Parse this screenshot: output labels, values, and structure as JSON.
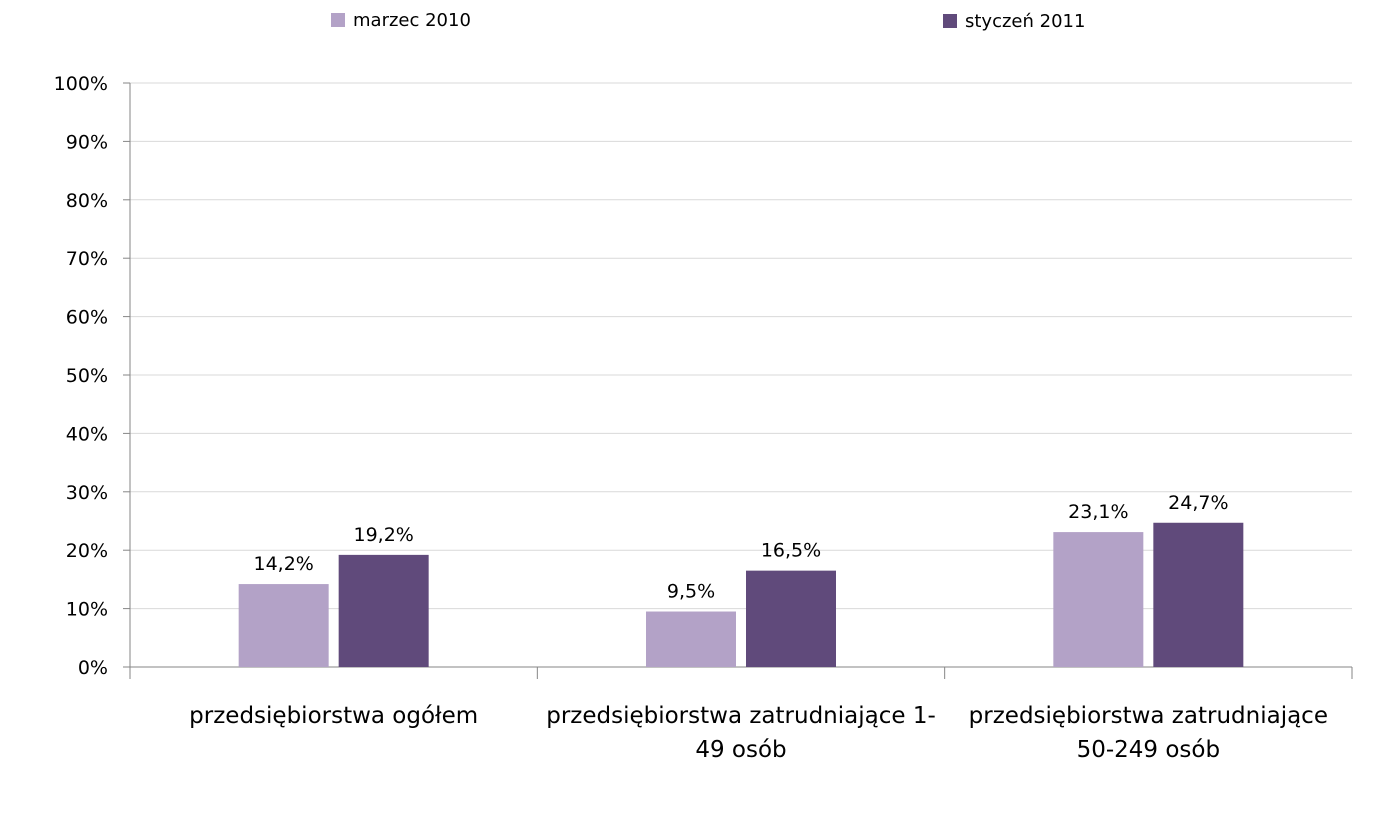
{
  "chart_data": {
    "type": "bar",
    "categories": [
      [
        "przedsiębiorstwa ogółem"
      ],
      [
        "przedsiębiorstwa zatrudniające 1-",
        "49 osób"
      ],
      [
        "przedsiębiorstwa zatrudniające",
        "50-249 osób"
      ]
    ],
    "series": [
      {
        "name": "marzec 2010",
        "color": "#b3a2c7",
        "values": [
          14.2,
          9.5,
          23.1
        ],
        "labels": [
          "14,2%",
          "9,5%",
          "23,1%"
        ]
      },
      {
        "name": "styczeń 2011",
        "color": "#604a7b",
        "values": [
          19.2,
          16.5,
          24.7
        ],
        "labels": [
          "19,2%",
          "16,5%",
          "24,7%"
        ]
      }
    ],
    "ylim": [
      0,
      100
    ],
    "yticks": [
      "0%",
      "10%",
      "20%",
      "30%",
      "40%",
      "50%",
      "60%",
      "70%",
      "80%",
      "90%",
      "100%"
    ],
    "grid": true,
    "legend_position": "top",
    "xlabel": "",
    "ylabel": "",
    "title": ""
  }
}
